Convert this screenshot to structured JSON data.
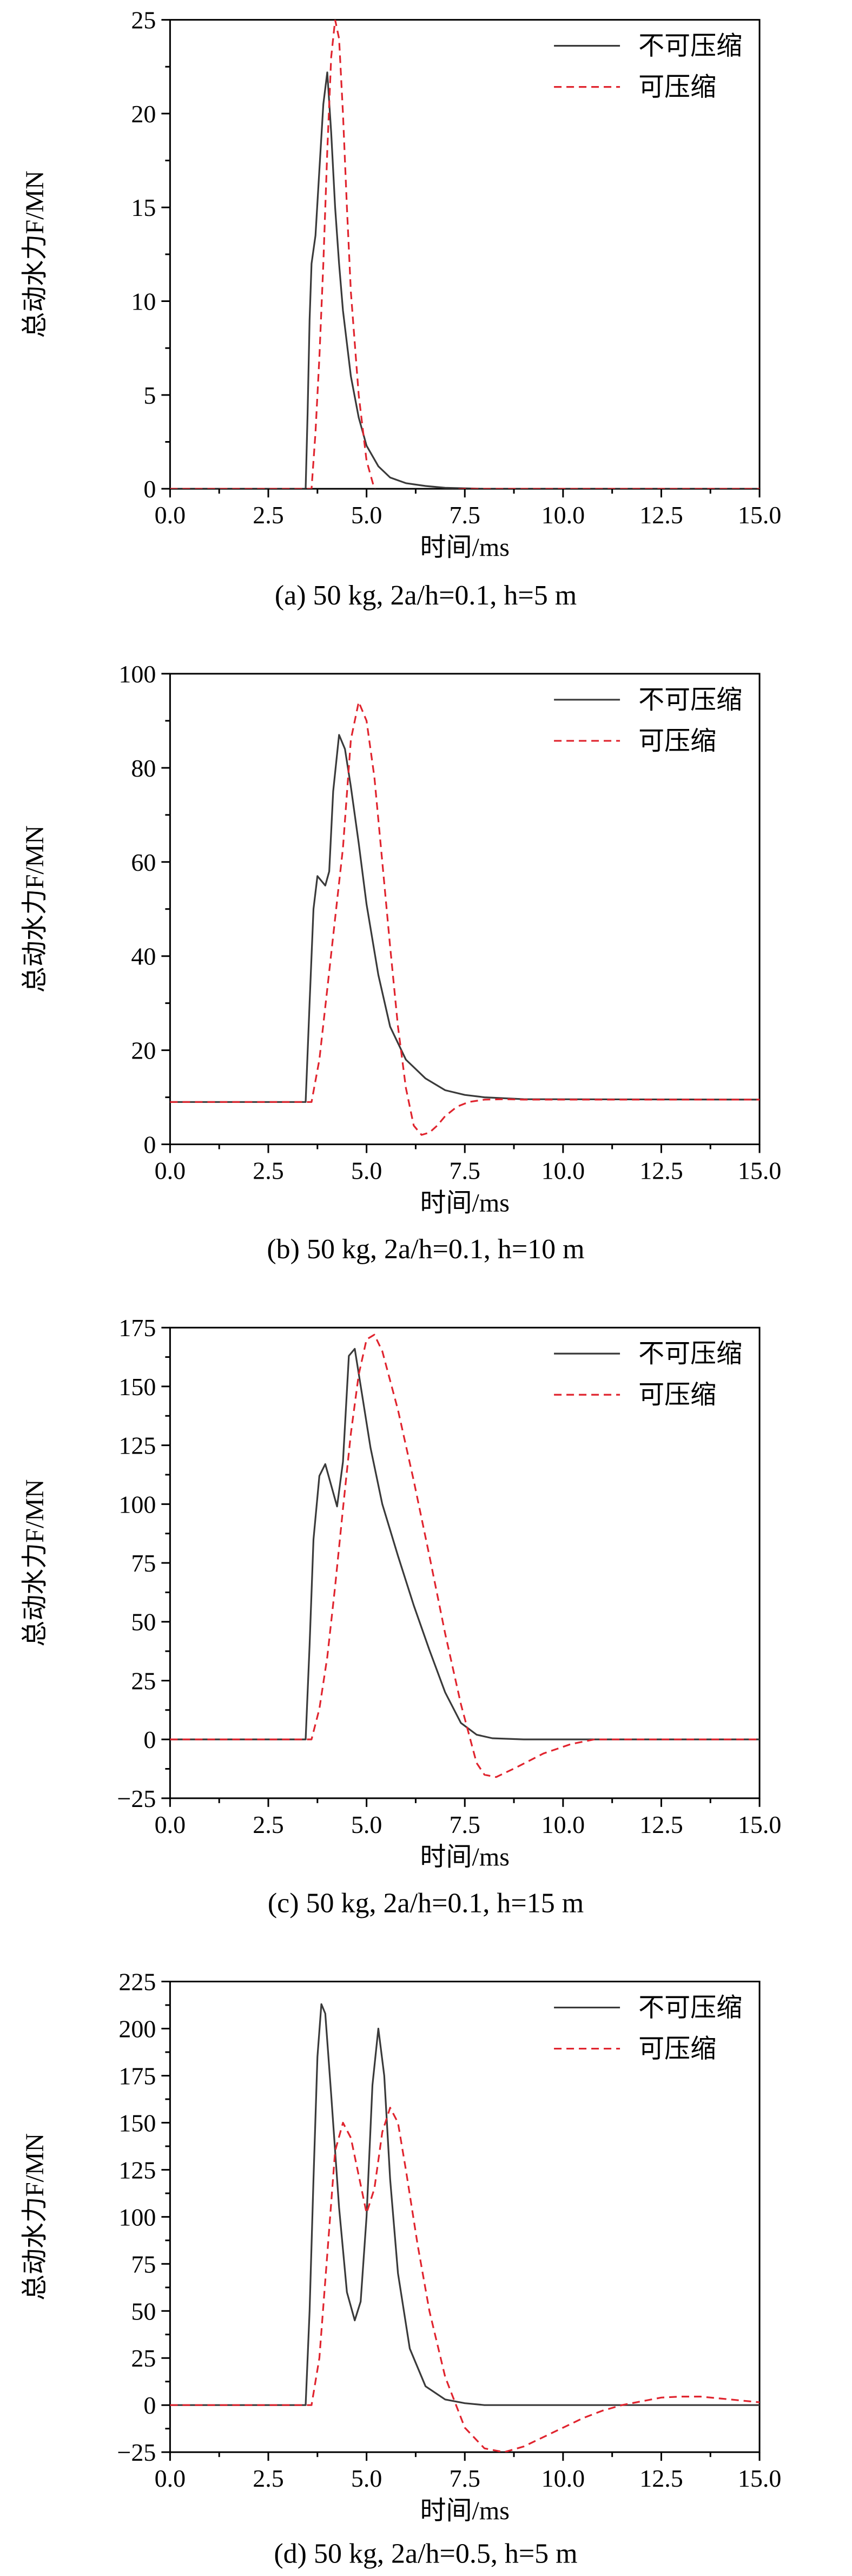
{
  "chart_data": [
    {
      "type": "line",
      "caption": "(a) 50 kg, 2a/h=0.1, h=5 m",
      "xlabel": "时间/ms",
      "ylabel": "总动水力F/MN",
      "xlim": [
        0,
        15
      ],
      "ylim": [
        0,
        25
      ],
      "xticks": [
        "0.0",
        "2.5",
        "5.0",
        "7.5",
        "10.0",
        "12.5",
        "15.0"
      ],
      "yticks": [
        "0",
        "5",
        "10",
        "15",
        "20",
        "25"
      ],
      "legend_position": "top-right",
      "series": [
        {
          "name": "不可压缩",
          "color": "#3a3a3a",
          "dash": "solid",
          "x": [
            0,
            3.45,
            3.5,
            3.55,
            3.6,
            3.7,
            3.8,
            3.9,
            4.0,
            4.1,
            4.2,
            4.3,
            4.4,
            4.6,
            4.8,
            5.0,
            5.3,
            5.6,
            6.0,
            6.5,
            7.0,
            8.0,
            15.0
          ],
          "y": [
            0,
            0,
            4,
            9,
            12,
            13.5,
            17,
            20.5,
            22.2,
            19,
            15,
            12,
            9.5,
            6,
            3.8,
            2.3,
            1.2,
            0.6,
            0.3,
            0.15,
            0.05,
            0,
            0
          ]
        },
        {
          "name": "可压缩",
          "color": "#e0242e",
          "dash": "dashed",
          "x": [
            0,
            3.6,
            3.7,
            3.8,
            3.9,
            4.0,
            4.1,
            4.2,
            4.3,
            4.4,
            4.5,
            4.6,
            4.8,
            5.0,
            5.2,
            5.4,
            5.8,
            6.2,
            6.8,
            7.5,
            8.5,
            15.0
          ],
          "y": [
            0,
            0,
            3,
            7,
            12,
            18,
            23,
            25,
            24,
            20,
            15,
            10.5,
            5,
            1.5,
            0,
            -0.4,
            -0.3,
            -0.2,
            -0.1,
            0,
            0,
            0
          ]
        }
      ]
    },
    {
      "type": "line",
      "caption": "(b) 50 kg, 2a/h=0.1, h=10 m",
      "xlabel": "时间/ms",
      "ylabel": "总动水力F/MN",
      "xlim": [
        0,
        15
      ],
      "ylim": [
        0,
        100
      ],
      "xticks": [
        "0.0",
        "2.5",
        "5.0",
        "7.5",
        "10.0",
        "12.5",
        "15.0"
      ],
      "yticks": [
        "0",
        "20",
        "40",
        "60",
        "80",
        "100"
      ],
      "legend_position": "top-right",
      "series": [
        {
          "name": "不可压缩",
          "color": "#3a3a3a",
          "dash": "solid",
          "x": [
            0,
            3.45,
            3.55,
            3.65,
            3.75,
            3.85,
            3.95,
            4.05,
            4.15,
            4.3,
            4.45,
            4.6,
            4.8,
            5.0,
            5.3,
            5.6,
            6.0,
            6.5,
            7.0,
            7.5,
            8.0,
            9.0,
            15.0
          ],
          "y": [
            9,
            9,
            30,
            50,
            57,
            56,
            55,
            58,
            75,
            87,
            84,
            76,
            64,
            51,
            36,
            25,
            18,
            14,
            11.5,
            10.5,
            10,
            9.6,
            9.5
          ]
        },
        {
          "name": "可压缩",
          "color": "#e0242e",
          "dash": "dashed",
          "x": [
            0,
            3.6,
            3.8,
            4.0,
            4.2,
            4.4,
            4.6,
            4.8,
            5.0,
            5.2,
            5.4,
            5.6,
            5.8,
            6.0,
            6.2,
            6.4,
            6.6,
            6.8,
            7.0,
            7.3,
            7.6,
            8.0,
            8.5,
            9.0,
            15.0
          ],
          "y": [
            9,
            9,
            18,
            33,
            48,
            63,
            86,
            94,
            90,
            78,
            60,
            42,
            25,
            12,
            4,
            2,
            2.5,
            4,
            6,
            8,
            9,
            9.5,
            9.6,
            9.5,
            9.5
          ]
        }
      ]
    },
    {
      "type": "line",
      "caption": "(c) 50 kg, 2a/h=0.1, h=15 m",
      "xlabel": "时间/ms",
      "ylabel": "总动水力F/MN",
      "xlim": [
        0,
        15
      ],
      "ylim": [
        -25,
        175
      ],
      "xticks": [
        "0.0",
        "2.5",
        "5.0",
        "7.5",
        "10.0",
        "12.5",
        "15.0"
      ],
      "yticks": [
        "−25",
        "0",
        "25",
        "50",
        "75",
        "100",
        "125",
        "150",
        "175"
      ],
      "legend_position": "top-right",
      "series": [
        {
          "name": "不可压缩",
          "color": "#3a3a3a",
          "dash": "solid",
          "x": [
            0,
            3.45,
            3.55,
            3.65,
            3.8,
            3.95,
            4.1,
            4.25,
            4.4,
            4.55,
            4.7,
            4.9,
            5.1,
            5.4,
            5.8,
            6.2,
            6.6,
            7.0,
            7.4,
            7.8,
            8.2,
            9.0,
            10.0,
            15.0
          ],
          "y": [
            0,
            0,
            40,
            85,
            112,
            117,
            108,
            99,
            118,
            163,
            166,
            145,
            124,
            100,
            78,
            57,
            38,
            20,
            7,
            2,
            0.5,
            0,
            0,
            0
          ]
        },
        {
          "name": "可压缩",
          "color": "#e0242e",
          "dash": "dashed",
          "x": [
            0,
            3.6,
            3.8,
            4.0,
            4.2,
            4.4,
            4.6,
            4.8,
            5.0,
            5.2,
            5.4,
            5.8,
            6.2,
            6.6,
            7.0,
            7.4,
            7.8,
            8.0,
            8.3,
            8.8,
            9.5,
            10.2,
            10.8,
            11.5,
            15.0
          ],
          "y": [
            0,
            0,
            13,
            35,
            65,
            98,
            130,
            155,
            170,
            172,
            165,
            140,
            110,
            78,
            45,
            15,
            -10,
            -15,
            -16,
            -12,
            -6,
            -2,
            0,
            0,
            0
          ]
        }
      ]
    },
    {
      "type": "line",
      "caption": "(d) 50 kg, 2a/h=0.5, h=5 m",
      "xlabel": "时间/ms",
      "ylabel": "总动水力F/MN",
      "xlim": [
        0,
        15
      ],
      "ylim": [
        -25,
        225
      ],
      "xticks": [
        "0.0",
        "2.5",
        "5.0",
        "7.5",
        "10.0",
        "12.5",
        "15.0"
      ],
      "yticks": [
        "−25",
        "0",
        "25",
        "50",
        "75",
        "100",
        "125",
        "150",
        "175",
        "200",
        "225"
      ],
      "legend_position": "top-right",
      "series": [
        {
          "name": "不可压缩",
          "color": "#3a3a3a",
          "dash": "solid",
          "x": [
            0,
            3.45,
            3.55,
            3.65,
            3.75,
            3.85,
            3.95,
            4.1,
            4.3,
            4.5,
            4.7,
            4.85,
            5.0,
            5.15,
            5.3,
            5.45,
            5.6,
            5.8,
            6.1,
            6.5,
            7.0,
            7.5,
            8.0,
            9.0,
            15.0
          ],
          "y": [
            0,
            0,
            50,
            120,
            185,
            213,
            208,
            165,
            105,
            60,
            45,
            55,
            100,
            170,
            200,
            175,
            120,
            70,
            30,
            10,
            3,
            1,
            0,
            0,
            0
          ]
        },
        {
          "name": "可压缩",
          "color": "#e0242e",
          "dash": "dashed",
          "x": [
            0,
            3.6,
            3.8,
            4.0,
            4.2,
            4.4,
            4.6,
            4.8,
            5.0,
            5.2,
            5.4,
            5.6,
            5.8,
            6.0,
            6.3,
            6.6,
            7.0,
            7.5,
            8.0,
            8.5,
            9.0,
            9.5,
            10.0,
            10.5,
            11.0,
            11.5,
            12.0,
            12.5,
            13.0,
            13.5,
            14.0,
            14.5,
            15.0
          ],
          "y": [
            0,
            0,
            25,
            80,
            135,
            150,
            142,
            122,
            102,
            115,
            145,
            158,
            150,
            125,
            85,
            50,
            15,
            -12,
            -23,
            -25,
            -22,
            -17,
            -12,
            -7,
            -3,
            0,
            2,
            4,
            4.5,
            4.5,
            3.5,
            2.5,
            1.5
          ]
        }
      ]
    }
  ]
}
